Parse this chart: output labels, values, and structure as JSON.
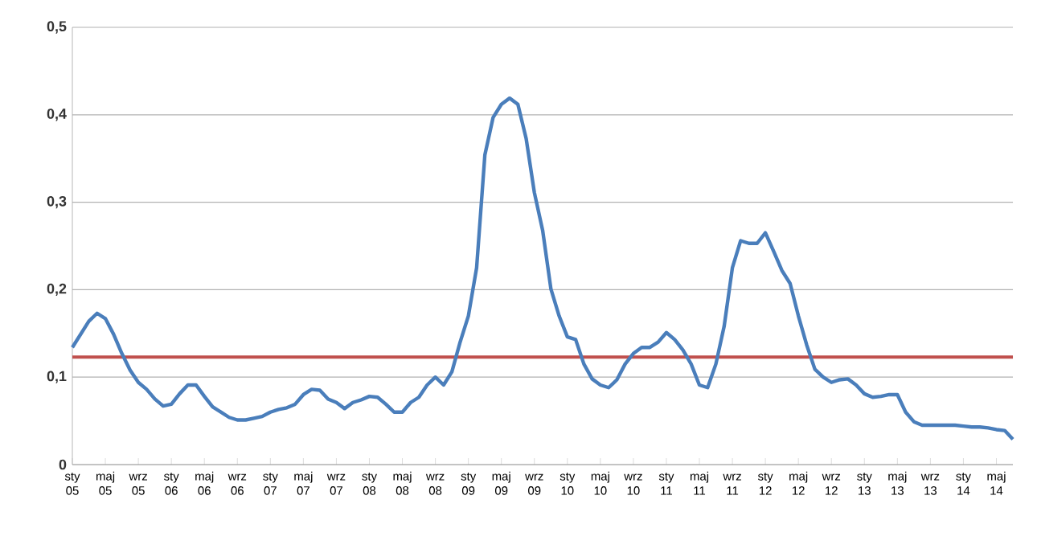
{
  "chart_data": {
    "type": "line",
    "categories": [
      "sty 05",
      null,
      null,
      null,
      "maj 05",
      null,
      null,
      null,
      "wrz 05",
      null,
      null,
      null,
      "sty 06",
      null,
      null,
      null,
      "maj 06",
      null,
      null,
      null,
      "wrz 06",
      null,
      null,
      null,
      "sty 07",
      null,
      null,
      null,
      "maj 07",
      null,
      null,
      null,
      "wrz 07",
      null,
      null,
      null,
      "sty 08",
      null,
      null,
      null,
      "maj 08",
      null,
      null,
      null,
      "wrz 08",
      null,
      null,
      null,
      "sty 09",
      null,
      null,
      null,
      "maj 09",
      null,
      null,
      null,
      "wrz 09",
      null,
      null,
      null,
      "sty 10",
      null,
      null,
      null,
      "maj 10",
      null,
      null,
      null,
      "wrz 10",
      null,
      null,
      null,
      "sty 11",
      null,
      null,
      null,
      "maj 11",
      null,
      null,
      null,
      "wrz 11",
      null,
      null,
      null,
      "sty 12",
      null,
      null,
      null,
      "maj 12",
      null,
      null,
      null,
      "wrz 12",
      null,
      null,
      null,
      "sty 13",
      null,
      null,
      null,
      "maj 13",
      null,
      null,
      null,
      "wrz 13",
      null,
      null,
      null,
      "sty 14",
      null,
      null,
      null,
      "maj 14",
      null,
      null
    ],
    "series": [
      {
        "color": "#4a7ebb",
        "values": [
          0.134,
          0.149,
          0.164,
          0.173,
          0.167,
          0.149,
          0.127,
          0.108,
          0.094,
          0.086,
          0.075,
          0.067,
          0.069,
          0.081,
          0.091,
          0.091,
          0.078,
          0.066,
          0.06,
          0.054,
          0.051,
          0.051,
          0.053,
          0.055,
          0.06,
          0.063,
          0.065,
          0.069,
          0.08,
          0.086,
          0.085,
          0.075,
          0.071,
          0.064,
          0.071,
          0.074,
          0.078,
          0.077,
          0.069,
          0.06,
          0.06,
          0.071,
          0.077,
          0.091,
          0.1,
          0.091,
          0.106,
          0.14,
          0.17,
          0.225,
          0.354,
          0.397,
          0.412,
          0.419,
          0.412,
          0.373,
          0.311,
          0.268,
          0.201,
          0.17,
          0.146,
          0.143,
          0.115,
          0.098,
          0.091,
          0.088,
          0.097,
          0.115,
          0.127,
          0.134,
          0.134,
          0.14,
          0.151,
          0.143,
          0.131,
          0.115,
          0.091,
          0.088,
          0.115,
          0.158,
          0.225,
          0.256,
          0.253,
          0.253,
          0.265,
          0.244,
          0.222,
          0.207,
          0.17,
          0.137,
          0.109,
          0.1,
          0.094,
          0.097,
          0.098,
          0.091,
          0.081,
          0.077,
          0.078,
          0.08,
          0.08,
          0.06,
          0.049,
          0.045,
          0.045,
          0.045,
          0.045,
          0.045,
          0.044,
          0.043,
          0.043,
          0.042,
          0.04,
          0.039,
          0.029
        ]
      }
    ],
    "ylim": [
      0,
      0.5
    ],
    "yticks": [
      {
        "value": 0,
        "label": "0"
      },
      {
        "value": 0.1,
        "label": "0,1"
      },
      {
        "value": 0.2,
        "label": "0,2"
      },
      {
        "value": 0.3,
        "label": "0,3"
      },
      {
        "value": 0.4,
        "label": "0,4"
      },
      {
        "value": 0.5,
        "label": "0,5"
      }
    ],
    "grid": "y",
    "line_style": "solid",
    "marker": "none",
    "ref_lines": [
      {
        "axis": "y",
        "value": 0.123,
        "color": "#c0504d"
      }
    ]
  }
}
